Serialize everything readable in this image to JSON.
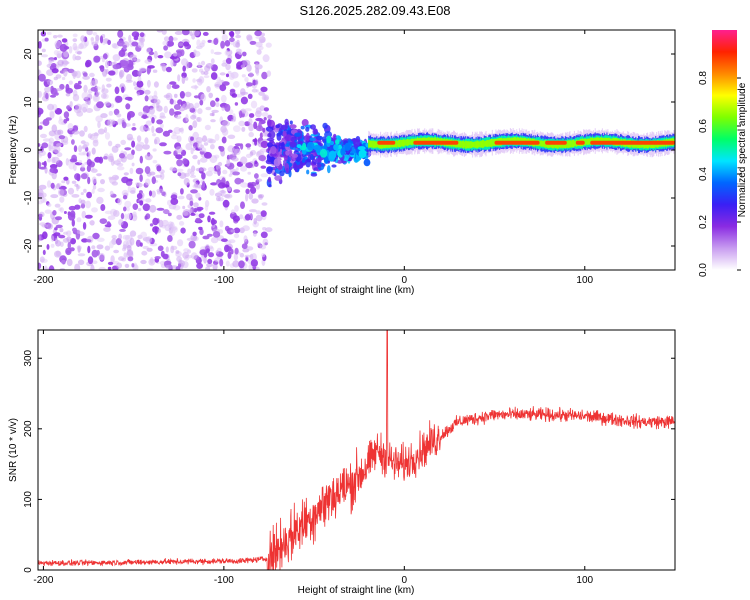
{
  "title": "S126.2025.282.09.43.E08",
  "chart_data": [
    {
      "type": "heatmap",
      "name": "spectrogram",
      "xlabel": "Height of straight line (km)",
      "ylabel": "Frequency (Hz)",
      "xlim": [
        -203,
        150
      ],
      "ylim": [
        -25,
        25
      ],
      "xticks": [
        -200,
        -100,
        0,
        100
      ],
      "yticks": [
        -20,
        -10,
        0,
        10,
        20
      ],
      "colorbar": {
        "label": "Normalized spectral amplitude",
        "range": [
          0.0,
          1.0
        ],
        "ticks": [
          0.0,
          0.2,
          0.4,
          0.6,
          0.8
        ],
        "colormap": [
          "#ffffff",
          "#c89cf0",
          "#8a2be2",
          "#3a1ff5",
          "#0066ff",
          "#00e5ff",
          "#00ff66",
          "#7fff00",
          "#ffff00",
          "#ff8800",
          "#ff2200",
          "#ff1f8f"
        ]
      },
      "regions": [
        {
          "x_range": [
            -203,
            -75
          ],
          "freq_range": [
            -25,
            25
          ],
          "amplitude_range": [
            0.05,
            0.2
          ],
          "description": "broadband noise"
        },
        {
          "x_range": [
            -75,
            -20
          ],
          "freq_range": [
            -10,
            10
          ],
          "amplitude_range": [
            0.1,
            0.5
          ],
          "description": "emerging signal"
        },
        {
          "x_range": [
            -20,
            150
          ],
          "freq_range": [
            0,
            3
          ],
          "amplitude_range": [
            0.6,
            1.0
          ],
          "description": "coherent narrowband signal"
        }
      ]
    },
    {
      "type": "line",
      "name": "snr",
      "xlabel": "Height of straight line (km)",
      "ylabel": "SNR (10 * v/v)",
      "xlim": [
        -203,
        150
      ],
      "ylim": [
        0,
        340
      ],
      "xticks": [
        -200,
        -100,
        0,
        100
      ],
      "yticks": [
        0,
        100,
        200,
        300
      ],
      "color": "#ee3333",
      "series": [
        {
          "name": "SNR",
          "x": [
            -203,
            -180,
            -150,
            -120,
            -90,
            -76,
            -70,
            -60,
            -50,
            -40,
            -30,
            -20,
            -15,
            -10,
            -5,
            0,
            10,
            20,
            30,
            50,
            80,
            100,
            130,
            150
          ],
          "y": [
            10,
            10,
            11,
            12,
            13,
            16,
            30,
            55,
            80,
            105,
            120,
            150,
            170,
            160,
            150,
            150,
            170,
            190,
            210,
            220,
            220,
            218,
            210,
            210
          ]
        },
        {
          "name": "spike",
          "x": [
            -9.5
          ],
          "y": [
            340
          ]
        }
      ]
    }
  ]
}
